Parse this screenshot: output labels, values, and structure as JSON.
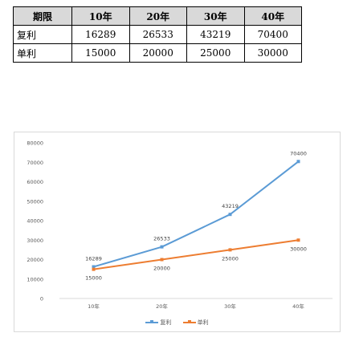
{
  "table": {
    "headers": [
      "期限",
      "10年",
      "20年",
      "30年",
      "40年"
    ],
    "rows": [
      {
        "label": "复利",
        "values": [
          "16289",
          "26533",
          "43219",
          "70400"
        ]
      },
      {
        "label": "单利",
        "values": [
          "15000",
          "20000",
          "25000",
          "30000"
        ]
      }
    ]
  },
  "chart_data": {
    "type": "line",
    "categories": [
      "10年",
      "20年",
      "30年",
      "40年"
    ],
    "series": [
      {
        "name": "复利",
        "values": [
          16289,
          26533,
          43219,
          70400
        ],
        "color": "#5b9bd5"
      },
      {
        "name": "单利",
        "values": [
          15000,
          20000,
          25000,
          30000
        ],
        "color": "#ed7d31"
      }
    ],
    "ylim": [
      0,
      80000
    ],
    "yticks": [
      0,
      10000,
      20000,
      30000,
      40000,
      50000,
      60000,
      70000,
      80000
    ],
    "ytick_labels": [
      "0",
      "10000",
      "20000",
      "30000",
      "40000",
      "50000",
      "60000",
      "70000",
      "80000"
    ],
    "data_labels": true,
    "grid": false,
    "legend": "bottom",
    "title": "",
    "xlabel": "",
    "ylabel": ""
  }
}
